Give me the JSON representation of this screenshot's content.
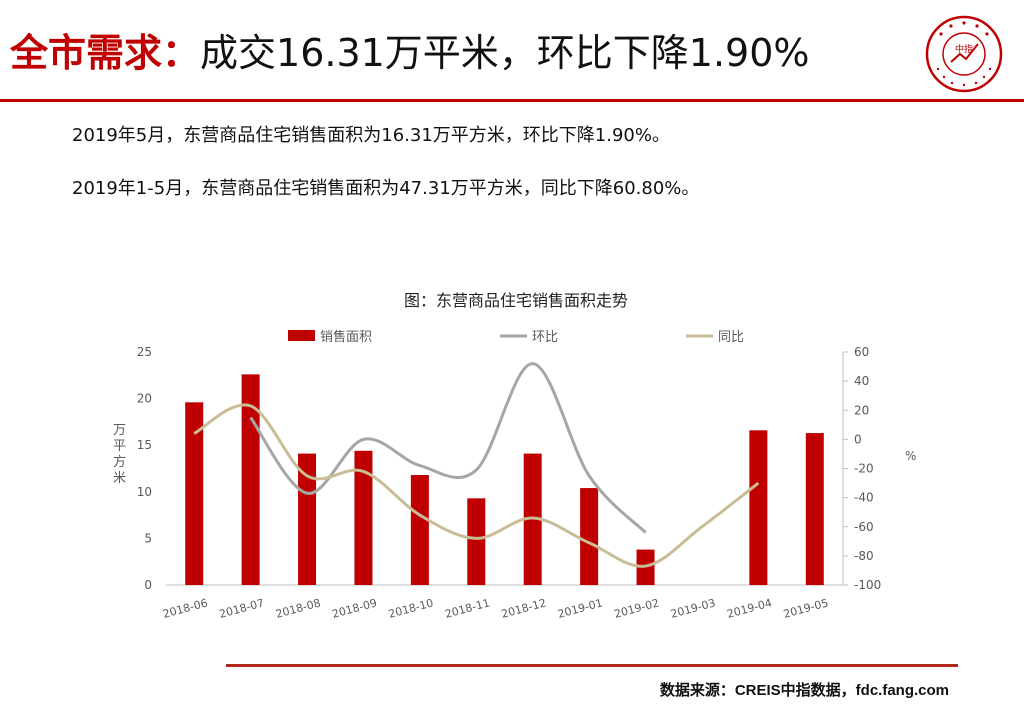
{
  "header": {
    "title_keyword": "全市需求：",
    "title_rest": "成交16.31万平米，环比下降1.90%",
    "accent_color": "#c00000"
  },
  "summary": {
    "line1": "2019年5月，东营商品住宅销售面积为16.31万平方米，环比下降1.90%。",
    "line2": "2019年1-5月，东营商品住宅销售面积为47.31万平方米，同比下降60.80%。"
  },
  "logo": {
    "icon": "china-index-academy-seal",
    "center_text": "中指"
  },
  "chart_data": {
    "type": "bar",
    "title": "图：东营商品住宅销售面积走势",
    "categories": [
      "2018-06",
      "2018-07",
      "2018-08",
      "2018-09",
      "2018-10",
      "2018-11",
      "2018-12",
      "2019-01",
      "2019-02",
      "2019-03",
      "2019-04",
      "2019-05"
    ],
    "series": [
      {
        "name": "销售面积",
        "type": "bar",
        "axis": "left",
        "color": "#c00000",
        "values": [
          19.6,
          22.6,
          14.1,
          14.4,
          11.8,
          9.3,
          14.1,
          10.4,
          3.8,
          null,
          16.6,
          16.3
        ]
      },
      {
        "name": "环比",
        "type": "line",
        "axis": "right",
        "color": "#a6a6a6",
        "values": [
          null,
          15,
          -37,
          0,
          -18,
          -21,
          52,
          -25,
          -64,
          null,
          null,
          null
        ]
      },
      {
        "name": "同比",
        "type": "line",
        "axis": "right",
        "color": "#c9bd96",
        "values": [
          4,
          23,
          -25,
          -22,
          -52,
          -68,
          -54,
          -71,
          -87,
          -60,
          -30,
          null
        ]
      }
    ],
    "ylabel": "万平方米",
    "y2label": "%",
    "ylim": [
      0,
      25
    ],
    "y2lim": [
      -100,
      60
    ],
    "yticks": [
      0,
      5,
      10,
      15,
      20,
      25
    ],
    "y2ticks": [
      -100,
      -80,
      -60,
      -40,
      -20,
      0,
      20,
      40,
      60
    ],
    "legend_position": "top",
    "grid": false
  },
  "source": "数据来源：CREIS中指数据，fdc.fang.com"
}
